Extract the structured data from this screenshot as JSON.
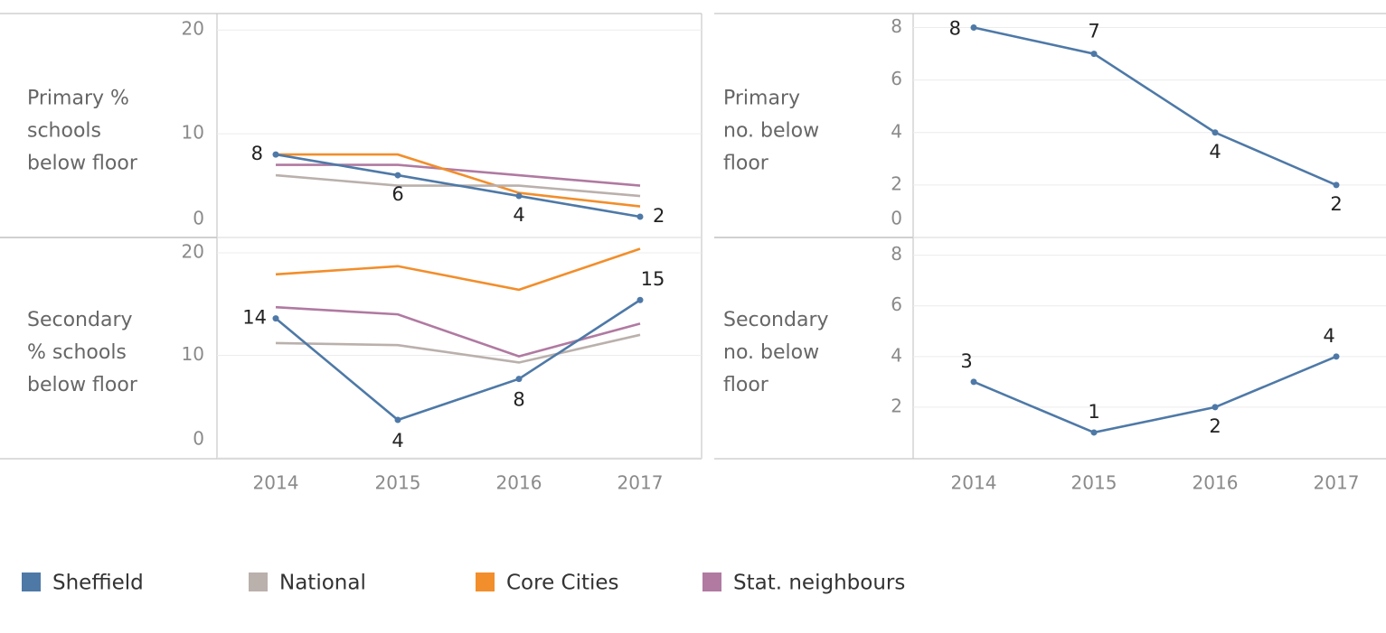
{
  "chart_data": [
    {
      "type": "line",
      "y_label": [
        "Primary %",
        "schools",
        "below floor"
      ],
      "ylim": [
        0,
        21.5
      ],
      "yticks": [
        0,
        10,
        20
      ],
      "grid": true,
      "series": [
        {
          "name": "Sheffield",
          "color": "#4e79a7",
          "values": [
            8,
            6,
            4,
            2
          ],
          "show_labels": true
        },
        {
          "name": "National",
          "color": "#bab0ac",
          "values": [
            6,
            5,
            5,
            4
          ]
        },
        {
          "name": "Core Cities",
          "color": "#f28e2b",
          "values": [
            8,
            8,
            4.3,
            3
          ]
        },
        {
          "name": "Stat. neighbours",
          "color": "#b07aa1",
          "values": [
            7,
            7,
            6,
            5
          ]
        }
      ]
    },
    {
      "type": "line",
      "y_label": [
        "Primary",
        "no. below",
        "floor"
      ],
      "ylim": [
        0,
        8.5
      ],
      "yticks": [
        0,
        2,
        4,
        6,
        8
      ],
      "grid": true,
      "color": "#4e79a7",
      "values": [
        8,
        7,
        4,
        2
      ],
      "show_labels": true
    },
    {
      "type": "line",
      "y_label": [
        "Secondary",
        "% schools",
        "below floor"
      ],
      "categories": [
        "2014",
        "2015",
        "2016",
        "2017"
      ],
      "ylim": [
        0,
        21.5
      ],
      "yticks": [
        0,
        10,
        20
      ],
      "grid": true,
      "series": [
        {
          "name": "Sheffield",
          "color": "#4e79a7",
          "values": [
            13.6,
            3.7,
            7.7,
            15.4
          ],
          "value_labels": [
            "14",
            "4",
            "8",
            "15"
          ],
          "show_labels": true
        },
        {
          "name": "National",
          "color": "#bab0ac",
          "values": [
            11.2,
            11,
            9.3,
            12
          ]
        },
        {
          "name": "Core Cities",
          "color": "#f28e2b",
          "values": [
            17.9,
            18.7,
            16.4,
            20.4
          ]
        },
        {
          "name": "Stat. neighbours",
          "color": "#b07aa1",
          "values": [
            14.7,
            14,
            9.9,
            13.1
          ]
        }
      ]
    },
    {
      "type": "line",
      "y_label": [
        "Secondary",
        "no. below",
        "floor"
      ],
      "categories": [
        "2014",
        "2015",
        "2016",
        "2017"
      ],
      "ylim": [
        0,
        8.7
      ],
      "yticks": [
        2,
        4,
        6,
        8
      ],
      "grid": true,
      "color": "#4e79a7",
      "values": [
        3,
        1,
        2,
        4
      ],
      "show_labels": true
    }
  ]
}
